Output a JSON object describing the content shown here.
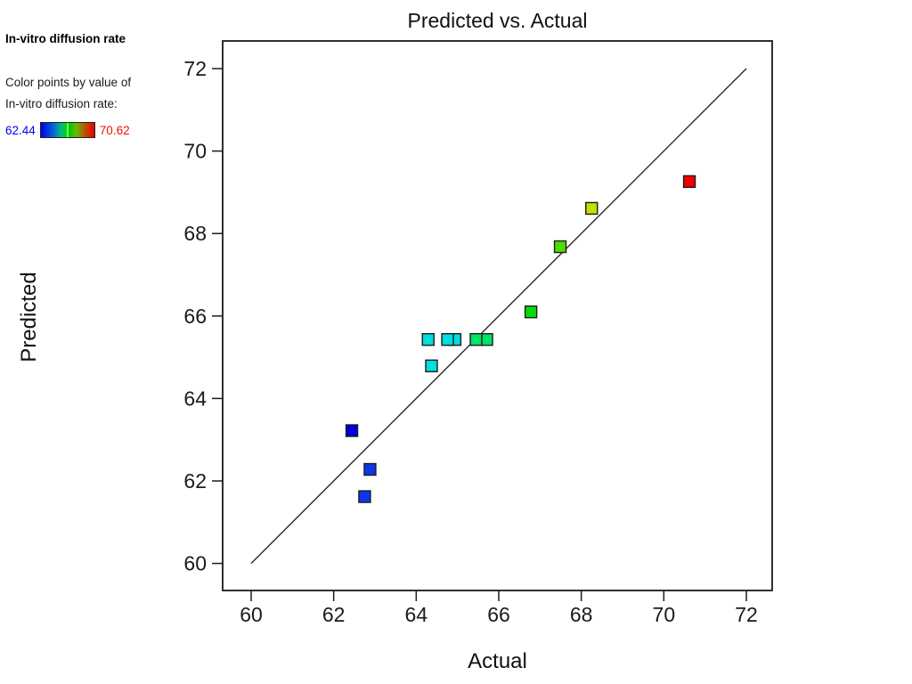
{
  "legend": {
    "title": "In-vitro diffusion rate",
    "subtitle_line1": "Color points by value of",
    "subtitle_line2": "In-vitro diffusion rate:",
    "min_value": "62.44",
    "max_value": "70.62",
    "min_value_color": "#0000f0",
    "max_value_color": "#ee1100",
    "gradient_css": "linear-gradient(to right,#0000e0 0%,#0555dd 20%,#00bb88 38%,#00d800 48%,#99ff99 49.6%,#99ff99 50.4%,#00c800 52%,#66bb00 66%,#bb5500 82%,#e60000 100%)"
  },
  "chart_data": {
    "type": "scatter",
    "title": "Predicted vs. Actual",
    "xlabel": "Actual",
    "ylabel": "Predicted",
    "xlim": [
      60,
      72
    ],
    "ylim": [
      60,
      72
    ],
    "x_ticks": [
      "60",
      "62",
      "64",
      "66",
      "68",
      "70",
      "72"
    ],
    "y_ticks": [
      "60",
      "62",
      "64",
      "66",
      "68",
      "70",
      "72"
    ],
    "grid": false,
    "reference_line": {
      "x1": 60,
      "y1": 60,
      "x2": 72,
      "y2": 72
    },
    "point_border_color": "#1c1c1c",
    "points": [
      {
        "actual": 62.44,
        "predicted": 63.22,
        "color": "#0000dd"
      },
      {
        "actual": 62.88,
        "predicted": 62.28,
        "color": "#0d36ee"
      },
      {
        "actual": 62.75,
        "predicted": 61.62,
        "color": "#0d36ee"
      },
      {
        "actual": 64.37,
        "predicted": 64.79,
        "color": "#00dfdf"
      },
      {
        "actual": 64.29,
        "predicted": 65.43,
        "color": "#00dfdf"
      },
      {
        "actual": 64.94,
        "predicted": 65.43,
        "color": "#00dfdf"
      },
      {
        "actual": 64.76,
        "predicted": 65.43,
        "color": "#00dfdf"
      },
      {
        "actual": 65.71,
        "predicted": 65.43,
        "color": "#00e266"
      },
      {
        "actual": 65.45,
        "predicted": 65.43,
        "color": "#00e266"
      },
      {
        "actual": 66.78,
        "predicted": 66.1,
        "color": "#00dd00"
      },
      {
        "actual": 67.49,
        "predicted": 67.68,
        "color": "#4fdd00"
      },
      {
        "actual": 68.25,
        "predicted": 68.61,
        "color": "#c9dd00"
      },
      {
        "actual": 70.62,
        "predicted": 69.26,
        "color": "#ee0000"
      }
    ]
  }
}
